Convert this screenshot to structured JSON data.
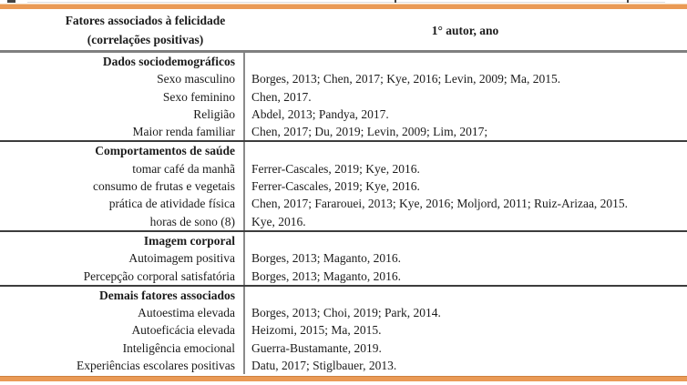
{
  "colors": {
    "accent_orange": "#EA9A55",
    "header_rule_gray": "#7f7f7f",
    "section_rule_dark": "#3c3c3c",
    "column_divider_gray": "#8a8a8a",
    "text": "#1b1b1b",
    "background": "#ffffff"
  },
  "table": {
    "header": {
      "col1_line1": "Fatores associados à felicidade",
      "col1_line2": "(correlações positivas)",
      "col2": "1° autor, ano"
    },
    "sections": [
      {
        "title": "Dados sociodemográficos",
        "rows": [
          {
            "label": "Sexo masculino",
            "authors": "Borges, 2013; Chen, 2017; Kye, 2016; Levin, 2009; Ma, 2015."
          },
          {
            "label": "Sexo feminino",
            "authors": "Chen, 2017."
          },
          {
            "label": "Religião",
            "authors": "Abdel, 2013; Pandya, 2017."
          },
          {
            "label": "Maior renda familiar",
            "authors": "Chen, 2017; Du, 2019; Levin, 2009; Lim, 2017;"
          }
        ]
      },
      {
        "title": "Comportamentos de saúde",
        "rows": [
          {
            "label": "tomar café da manhã",
            "authors": "Ferrer-Cascales, 2019; Kye, 2016."
          },
          {
            "label": "consumo de frutas e vegetais",
            "authors": "Ferrer-Cascales, 2019; Kye, 2016."
          },
          {
            "label": "prática de atividade física",
            "authors": "Chen, 2017; Fararouei, 2013; Kye, 2016; Moljord, 2011; Ruiz-Arizaa, 2015."
          },
          {
            "label": "horas de sono (8)",
            "authors": "Kye, 2016."
          }
        ]
      },
      {
        "title": "Imagem corporal",
        "rows": [
          {
            "label": "Autoimagem positiva",
            "authors": "Borges, 2013; Maganto, 2016."
          },
          {
            "label": "Percepção corporal satisfatória",
            "authors": "Borges, 2013; Maganto, 2016."
          }
        ]
      },
      {
        "title": "Demais fatores associados",
        "rows": [
          {
            "label": "Autoestima elevada",
            "authors": "Borges, 2013; Choi, 2019; Park, 2014."
          },
          {
            "label": "Autoeficácia elevada",
            "authors": "Heizomi, 2015; Ma, 2015."
          },
          {
            "label": "Inteligência emocional",
            "authors": "Guerra-Bustamante, 2019."
          },
          {
            "label": "Experiências escolares positivas",
            "authors": "Datu, 2017; Stiglbauer, 2013."
          }
        ]
      }
    ]
  }
}
